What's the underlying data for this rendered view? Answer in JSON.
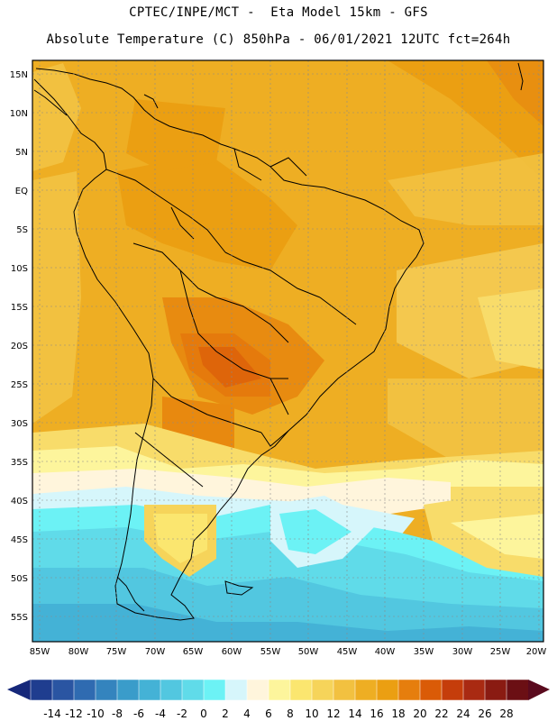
{
  "header": {
    "line1": "CPTEC/INPE/MCT -  Eta Model 15km - GFS",
    "line2": "Absolute Temperature (C) 850hPa - 06/01/2021 12UTC fct=264h"
  },
  "map": {
    "lat_labels": [
      "15N",
      "10N",
      "5N",
      "EQ",
      "5S",
      "10S",
      "15S",
      "20S",
      "25S",
      "30S",
      "35S",
      "40S",
      "45S",
      "50S",
      "55S"
    ],
    "lon_labels": [
      "85W",
      "80W",
      "75W",
      "70W",
      "65W",
      "60W",
      "55W",
      "50W",
      "45W",
      "40W",
      "35W",
      "30W",
      "25W",
      "20W"
    ]
  },
  "colorbar": {
    "labels": [
      "-14",
      "-12",
      "-10",
      "-8",
      "-6",
      "-4",
      "-2",
      "0",
      "2",
      "4",
      "6",
      "8",
      "10",
      "12",
      "14",
      "16",
      "18",
      "20",
      "22",
      "24",
      "26",
      "28"
    ],
    "colors": [
      "#1f3d8f",
      "#2a55a2",
      "#2f6bb1",
      "#3484be",
      "#3a9cca",
      "#44b2d6",
      "#52c7e0",
      "#60dbe9",
      "#6cf2f5",
      "#d6f6fb",
      "#fff5dc",
      "#fdf59c",
      "#fbe66f",
      "#f6d45a",
      "#f2c140",
      "#eeae23",
      "#eb9f12",
      "#e67e0d",
      "#da5b07",
      "#c53d0b",
      "#a92a12",
      "#8a1b12",
      "#6b0f14"
    ],
    "arrow_left_color": "#16287a",
    "arrow_right_color": "#5a0a1e"
  }
}
